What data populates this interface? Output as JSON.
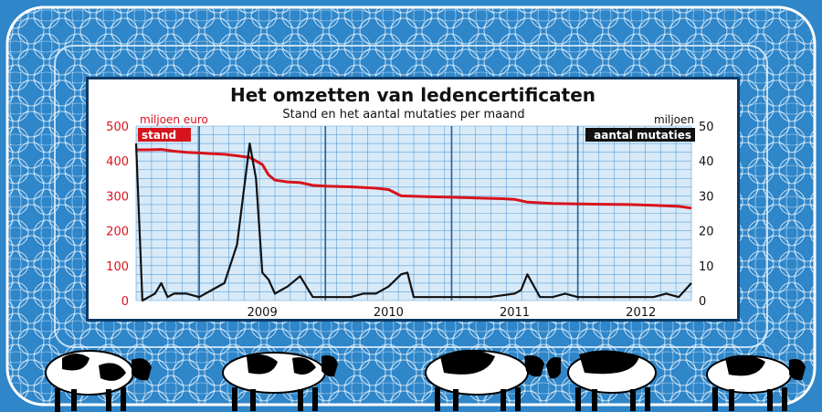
{
  "colors": {
    "background": "#2f86c9",
    "plot_area": "#d8eaf8",
    "grid": "#5a9fd6",
    "stand_line": "#d7141d",
    "mutaties_line": "#111111"
  },
  "chart_data": {
    "type": "line",
    "title": "Het omzetten van ledencertificaten",
    "subtitle": "Stand en het aantal mutaties per maand",
    "left_axis": {
      "unit": "miljoen euro",
      "range": [
        0,
        500
      ],
      "ticks": [
        "0",
        "100",
        "200",
        "300",
        "400",
        "500"
      ]
    },
    "right_axis": {
      "unit": "miljoen",
      "range": [
        0,
        50
      ],
      "ticks": [
        "0",
        "10",
        "20",
        "30",
        "40",
        "50"
      ]
    },
    "x_ticks": [
      "2009",
      "2010",
      "2011",
      "2012"
    ],
    "x_range": [
      2008.5,
      2012.9
    ],
    "grid": true,
    "legend_position": "top",
    "series": [
      {
        "name": "stand",
        "axis": "left",
        "x": [
          2008.5,
          2008.6,
          2008.7,
          2008.8,
          2008.9,
          2009.0,
          2009.1,
          2009.2,
          2009.3,
          2009.4,
          2009.5,
          2009.55,
          2009.6,
          2009.7,
          2009.8,
          2009.9,
          2010.0,
          2010.2,
          2010.4,
          2010.5,
          2010.6,
          2010.8,
          2011.0,
          2011.2,
          2011.4,
          2011.5,
          2011.6,
          2011.8,
          2012.0,
          2012.2,
          2012.4,
          2012.6,
          2012.8,
          2012.9
        ],
        "values": [
          432,
          432,
          433,
          428,
          425,
          423,
          421,
          419,
          415,
          410,
          390,
          360,
          345,
          340,
          338,
          330,
          328,
          326,
          322,
          318,
          300,
          298,
          296,
          294,
          292,
          290,
          282,
          278,
          277,
          276,
          275,
          273,
          270,
          265
        ]
      },
      {
        "name": "aantal mutaties",
        "axis": "right",
        "x": [
          2008.5,
          2008.55,
          2008.6,
          2008.65,
          2008.7,
          2008.75,
          2008.8,
          2008.85,
          2008.9,
          2009.0,
          2009.1,
          2009.2,
          2009.3,
          2009.4,
          2009.45,
          2009.5,
          2009.55,
          2009.6,
          2009.65,
          2009.7,
          2009.8,
          2009.9,
          2010.0,
          2010.1,
          2010.2,
          2010.3,
          2010.4,
          2010.5,
          2010.6,
          2010.65,
          2010.7,
          2010.8,
          2010.9,
          2011.0,
          2011.1,
          2011.2,
          2011.3,
          2011.4,
          2011.5,
          2011.55,
          2011.6,
          2011.7,
          2011.8,
          2011.9,
          2012.0,
          2012.1,
          2012.2,
          2012.3,
          2012.4,
          2012.5,
          2012.6,
          2012.7,
          2012.8,
          2012.9
        ],
        "values": [
          45,
          0,
          1,
          2,
          5,
          1,
          2,
          2,
          2,
          1,
          3,
          5,
          16,
          45,
          35,
          8,
          6,
          2,
          3,
          4,
          7,
          1,
          1,
          1,
          1,
          2,
          2,
          4,
          7.5,
          8,
          1,
          1,
          1,
          1,
          1,
          1,
          1,
          1.5,
          2,
          3,
          7.5,
          1,
          1,
          2,
          1,
          1,
          1,
          1,
          1,
          1,
          1,
          2,
          1,
          5
        ]
      }
    ]
  }
}
